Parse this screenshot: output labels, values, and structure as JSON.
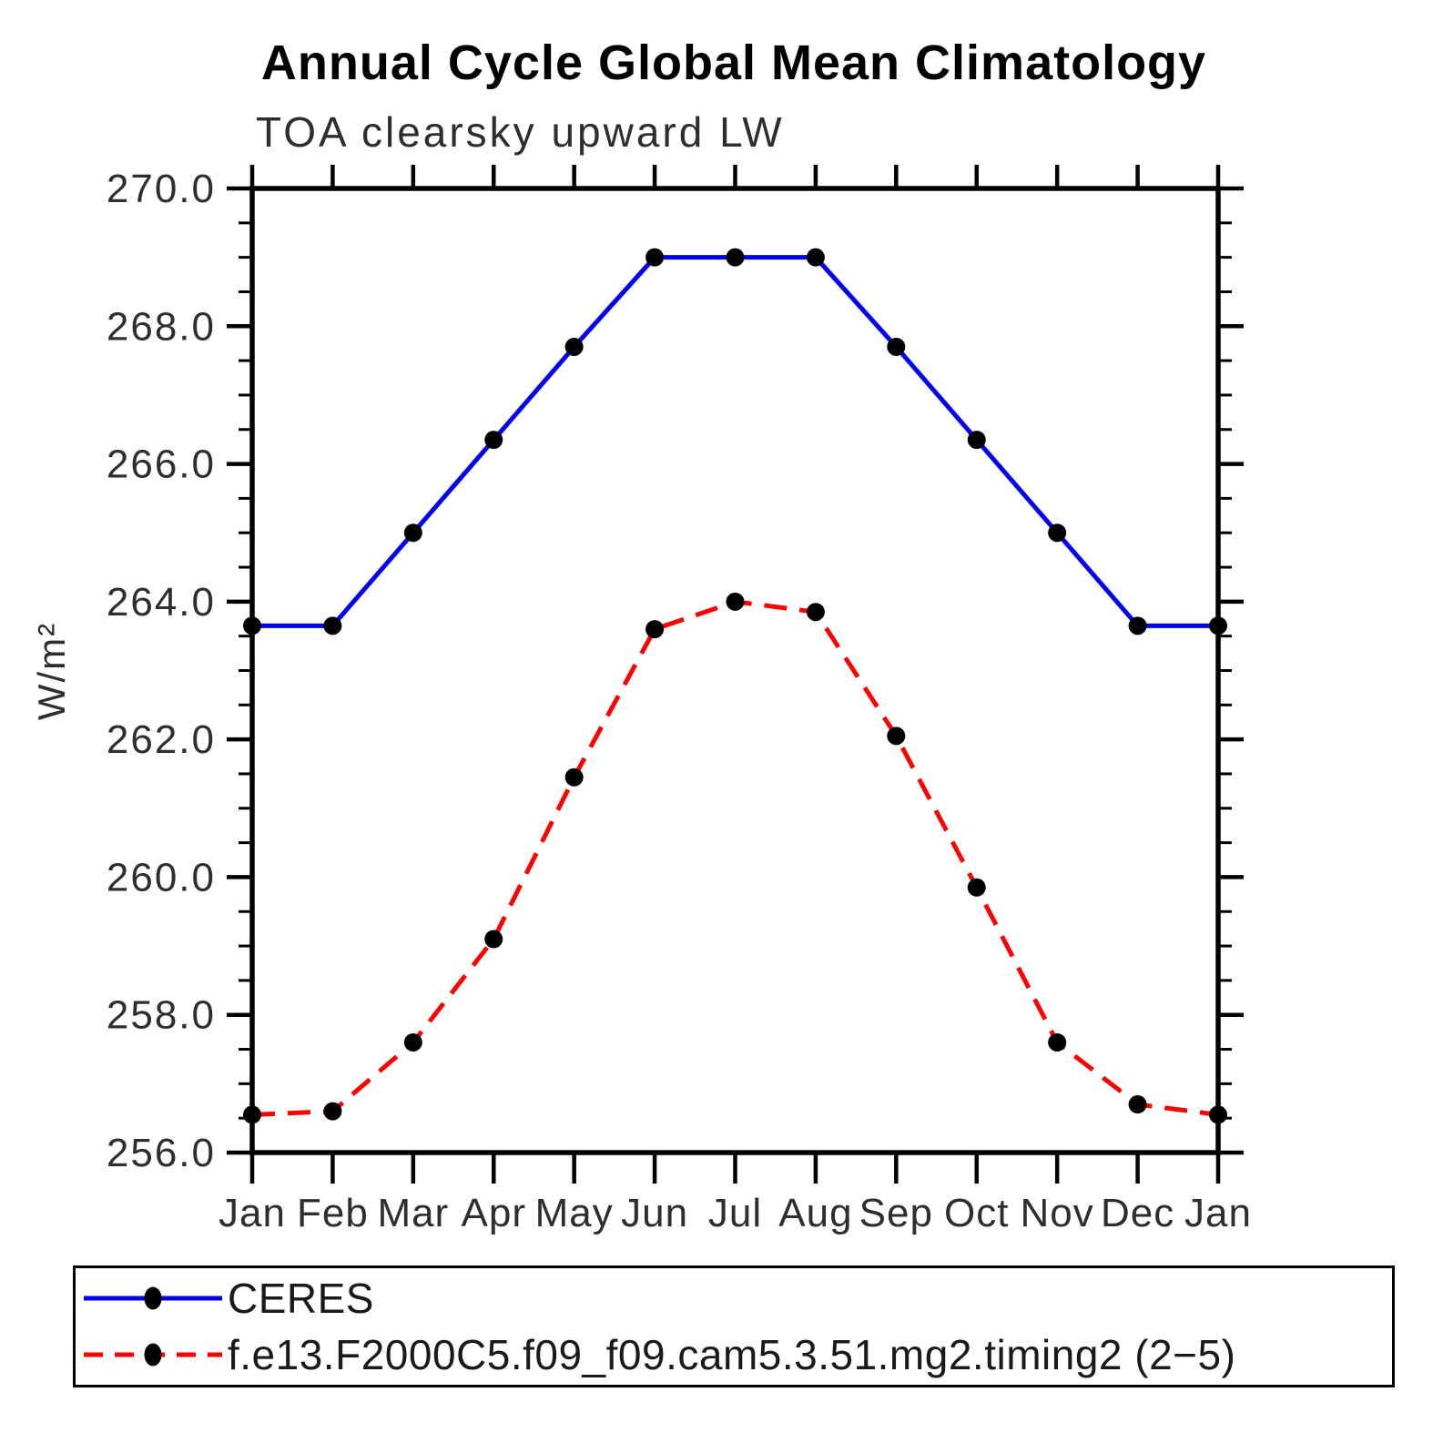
{
  "chart_data": {
    "type": "line",
    "title": "Annual Cycle Global Mean Climatology",
    "subtitle": "TOA clearsky upward LW",
    "ylabel": "W/m²",
    "categories": [
      "Jan",
      "Feb",
      "Mar",
      "Apr",
      "May",
      "Jun",
      "Jul",
      "Aug",
      "Sep",
      "Oct",
      "Nov",
      "Dec",
      "Jan"
    ],
    "ylim": [
      256.0,
      270.0
    ],
    "ytick_major": 2.0,
    "ytick_minor": 0.5,
    "ytick_label_format": "one_decimal",
    "grid": false,
    "legend_position": "bottom",
    "marker_color": "#000000",
    "axis_color": "#000000",
    "series": [
      {
        "name": "CERES",
        "color": "#0000ee",
        "line_style": "solid",
        "values": [
          263.65,
          263.65,
          265.0,
          266.35,
          267.7,
          269.0,
          269.0,
          269.0,
          267.7,
          266.35,
          265.0,
          263.65,
          263.65
        ]
      },
      {
        "name": "f.e13.F2000C5.f09_f09.cam5.3.51.mg2.timing2 (2−5)",
        "color": "#ff0000",
        "line_style": "dashed",
        "values": [
          256.55,
          256.6,
          257.6,
          259.1,
          261.45,
          263.6,
          264.0,
          263.85,
          262.05,
          259.85,
          257.6,
          256.7,
          256.55
        ]
      }
    ]
  }
}
